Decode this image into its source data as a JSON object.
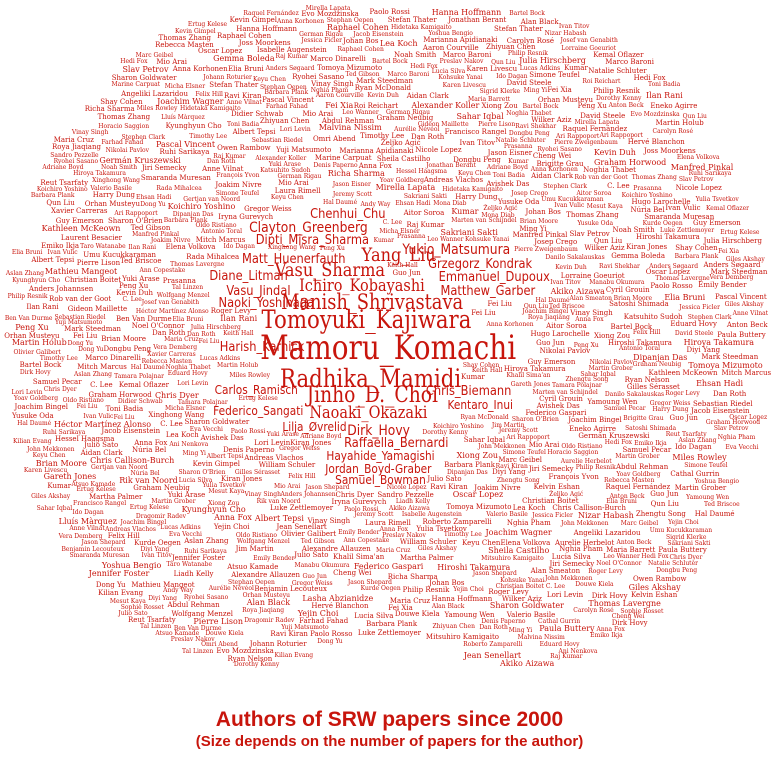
{
  "caption": {
    "title": "Authors of SRW papers since 2000",
    "subtitle": "(Size depends on the number of papers for the author)"
  },
  "colors": {
    "text": "#c8150c",
    "background": "#ffffff"
  },
  "words": {
    "large": [
      "Mamoru_Komachi",
      "Tomoyuki_Kajiwara",
      "Radhika_Mamidi",
      "Manish_Shrivastava",
      "Jinho_D._Choi",
      "Vasu_Sharma",
      "Ichiro_Kobayashi",
      "Yang_Liu",
      "Naoaki_Okazaki"
    ],
    "medium": [
      "Clayton_Greenberg",
      "Dipti_Misra_Sharma",
      "Chenhui_Chu",
      "Yukio_Matsumura",
      "Grzegorz_Kondrak",
      "Emmanuel_Dupoux",
      "Matthew_Garber",
      "Matt_Huenerfauth",
      "Diane_Litman",
      "Vasu_Jindal",
      "Naoki_Yoshinaga",
      "Harish_Karnick",
      "Carlos_Ramisch",
      "Federico_Sangati",
      "Chris_Biemann",
      "Kentaro_Inui",
      "Dirk_Hovy",
      "Lilja_Øvrelid",
      "Raffaella_Bernardi",
      "Hayahide_Yamagishi",
      "Jordan_Boyd-Graber",
      "Samuel_Bowman"
    ],
    "small": [
      "Aidan Clark",
      "Martin Holub",
      "Samuel Pecar",
      "Oldo Ristiano",
      "Dongbu Peng",
      "Pierre Lison",
      "Timothy Lee",
      "Emiko Ikja",
      "Dong Yu",
      "Adriane Boyd",
      "Albert Tepsi",
      "Richa Sharma",
      "Zhiyuan Chen",
      "Gregor Weiss",
      "Thomas Zhang",
      "Anna Fox",
      "Vinay Singh",
      "Jiri Semecky",
      "Marc Geibel",
      "John Mekkonen",
      "Ilan Rani",
      "Cheng Wei",
      "Jeremy Scott",
      "Bartel Bock",
      "C. Lee",
      "Giles Akshay",
      "Kumar",
      "Xinghong Wang",
      "Jason Shepard",
      "Evo Mozdzinska",
      "Ertug Kelese",
      "Atsuo Kamade",
      "Yamoung Wen",
      "Kurde Oegen",
      "Raphael Cohen",
      "Zhengtu Song",
      "Noghia Thabet",
      "Rebecca Masten",
      "Aslan Zhang",
      "David Steele",
      "Orhan Musteyu",
      "Umu Kucukkaraman",
      "Wolfgang Menzel",
      "Kevin Gimpel",
      "Peng Xu",
      "Prasanna",
      "Roya Jiaqiang",
      "Ravi Kiran",
      "Harry Dung",
      "Mesut Kaya",
      "Farhad Fahad",
      "Ivan Vulic",
      "Miles Rowley",
      "Raj Kumar",
      "Martin Grober",
      "Abdul Rehman",
      "Kelvin Eshan",
      "Nicole Lopez",
      "Ryan Nelson",
      "Hiroshi Takamura",
      "Julio Sato",
      "Fei Liu",
      "Nikolai Pavlov",
      "Anton Beck",
      "Lucas Adkins",
      "Sahar Iqbal",
      "Ruhi Sarikaya",
      "Hanna Hoffmann",
      "Lea Koch",
      "Ming Yi",
      "Brian Moore",
      "Guo Jun",
      "Elena Volkova",
      "Danilo Sakalauskas",
      "Maria Cruz",
      "Paolo Rossi",
      "Hedi Fox",
      "Kiran Jones",
      "Yuki Arase",
      "Jessica Ficler",
      "Kohsuke Yanai",
      "Ehsan Hadi",
      "Xiong Zou",
      "Avishek Das",
      "Oscar Lopez",
      "Akiko Aizawa",
      "Hidetaka Kamigaito",
      "Mitsuhiro Kamigaito",
      "Keyu Chen",
      "Satoshi Shimada",
      "Yusuke Oda",
      "Graham Neubig",
      "Sakriani Sakti",
      "Koichiro Yoshino",
      "Manabu Okumura",
      "Hiroya Takamura",
      "Ryohei Sasano",
      "Yuji Matsumoto",
      "Katsuhito Sudoh",
      "Tomoya Mizumoto",
      "Mio Arai",
      "Taro Watanabe",
      "Chris Dyer",
      "Noah Smith",
      "Dan Roth",
      "Eduard Hovy",
      "Sharon Goldwater",
      "Mark Steedman",
      "Anna Korhonen",
      "Karen Livescu",
      "Julia Hirschberg",
      "Owen Rambow",
      "Smaranda Muresan",
      "Nizar Habash",
      "Kemal Oflazer",
      "Preslav Nakov",
      "Iryna Gurevych",
      "Alexander Koller",
      "Stefan Thater",
      "Manfred Pinkal",
      "Vera Demberg",
      "Barbara Plank",
      "Anders Søgaard",
      "Joakim Nivre",
      "Stephan Oepen",
      "Emily Bender",
      "Fei Xia",
      "Luke Zettlemoyer",
      "Yejin Choi",
      "Hal Daumé",
      "Philip Resnik",
      "Marine Carpuat",
      "Jason Eisner",
      "Ben Van Durme",
      "Kevin Duh",
      "Sebastian Riedel",
      "Isabelle Augenstein",
      "Andreas Vlachos",
      "Ted Briscoe",
      "Simone Teufel",
      "Paula Buttery",
      "Tal Linzen",
      "Roger Levy",
      "Ted Gibson",
      "Marten van Schijndel",
      "William Schuler",
      "Micha Elsner",
      "Yoav Goldberg",
      "Reut Tsarfaty",
      "Omri Abend",
      "Ari Rappoport",
      "Roi Reichart",
      "Ido Dagan",
      "Jonathan Berant",
      "Dipanjan Das",
      "Slav Petrov",
      "Ryan McDonald",
      "Keith Hall",
      "Jacob Eisenstein",
      "Diyi Yang",
      "Alan Black",
      "Carolyn Rosé",
      "Lori Levin",
      "Yulia Tsvetkov",
      "Graham Horwood",
      "Mona Diab",
      "Rada Mihalcea",
      "Dragomir Radev",
      "Kathleen McKeown",
      "Ani Nenkova",
      "Mitch Marcus",
      "Martha Palmer",
      "Jim Martin",
      "Chris Callison-Burch",
      "Marianna Apidianaki",
      "Eneko Agirre",
      "Aitor Soroa",
      "German Rigau",
      "Lluís Màrquez",
      "Xavier Carreras",
      "Núria Bel",
      "Horacio Saggion",
      "Leo Wanner",
      "Toni Badia",
      "Paolo Rosso",
      "Francisco Rangel",
      "Mirella Lapata",
      "Shay Cohen",
      "Ivan Titov",
      "Wilker Aziz",
      "Khalil Sima'an",
      "Raquel Fernández",
      "Elia Bruni",
      "Marco Baroni",
      "Roberto Zamparelli",
      "Gemma Boleda",
      "Denis Paperno",
      "Germán Kruszewski",
      "Angeliki Lazaridou",
      "Nghia Pham",
      "Sandro Pezzelle",
      "Ravi Shekhar",
      "Aurelie Herbelot",
      "Eva Vecchi",
      "Ann Copestake",
      "Guy Emerson",
      "Laura Rimell",
      "Stephen Clark",
      "Tamara Polajnar",
      "Douwe Kiela",
      "Felix Hill",
      "Kyunghyun Cho",
      "Yoshua Bengio",
      "Aaron Courville",
      "Hugo Larochelle",
      "Pascal Vincent",
      "Alexandre Allauzen",
      "François Yvon",
      "Josep Crego",
      "Jean Senellart",
      "Hervé Blanchon",
      "Laurent Besacier",
      "Benjamin Lecouteux",
      "Didier Schwab",
      "Gilles Sérasset",
      "Christian Boitet",
      "Mathieu Mangeot",
      "Lorraine Goeuriot",
      "Liadh Kelly",
      "Gareth Jones",
      "Cathal Gurrin",
      "Alan Smeaton",
      "Noel O'Connor",
      "Andy Way",
      "Qun Liu",
      "Jennifer Foster",
      "Joachim Wagner",
      "Josef van Genabith",
      "Johann Roturier",
      "Sharon O'Brien",
      "Dorothy Kenny",
      "Joss Moorkens",
      "Sheila Castilho",
      "Federico Gaspari",
      "Antonio Toral",
      "Gideon Maillette",
      "Gertjan van Noord",
      "Malvina Nissim",
      "Johan Bos",
      "Lasha Abzianidze",
      "Rik van Noord",
      "Kilian Evang",
      "Valerio Basile",
      "Hessel Haagsma",
      "Rob van der Goot",
      "Barbara Plank",
      "Dirk Hovy",
      "Anders Johannsen",
      "Héctor Martínez Alonso",
      "Željko Agić",
      "Natalie Schluter",
      "Joachim Bingel",
      "Maria Barrett",
      "Sigrid Klerke",
      "Lucia Silva",
      "Marco Dinarelli",
      "Sophie Rosset",
      "Olivier Galibert",
      "Anne Vilnat",
      "Brigitte Grau",
      "Pierre Zweigenbaum",
      "Aurélie Névéol",
      "Cyril Grouin",
      "Thomas Lavergne"
    ]
  }
}
